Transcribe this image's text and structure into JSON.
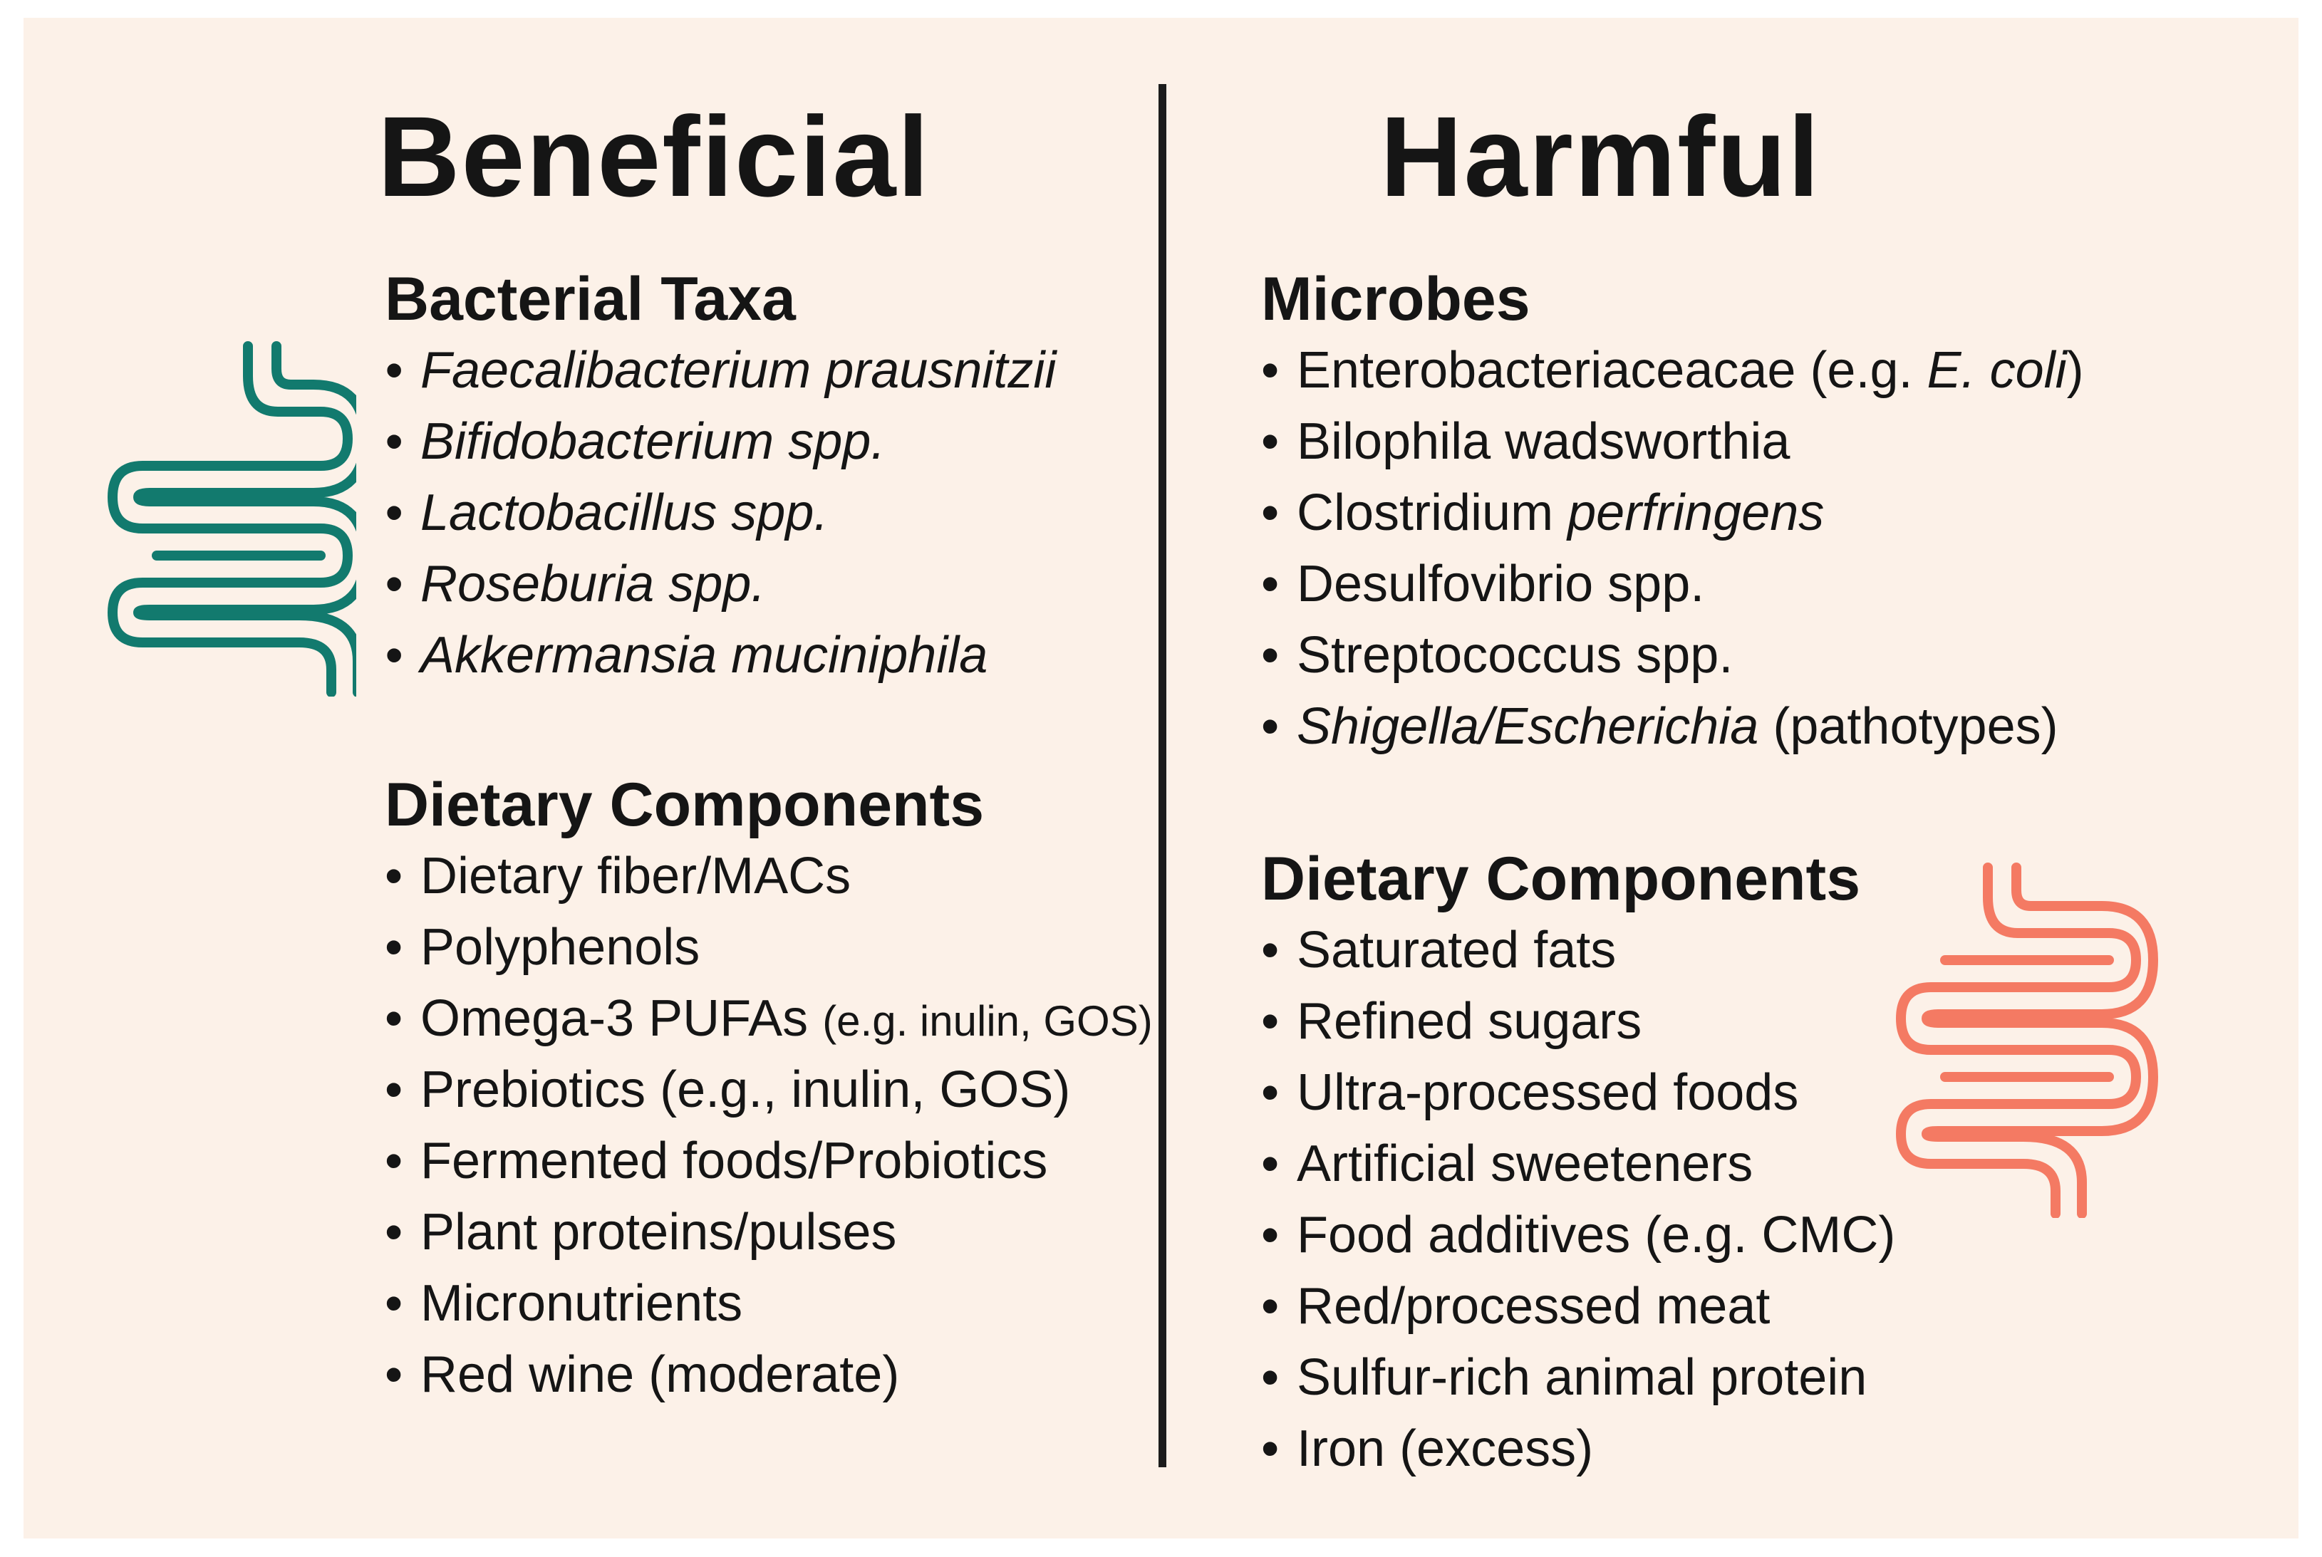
{
  "colors": {
    "background": "#fcf1e8",
    "text": "#151515",
    "divider": "#1c1c1c",
    "beneficial_icon": "#127a6e",
    "harmful_icon": "#f47a63"
  },
  "icons": {
    "left": "intestine-icon",
    "right": "intestine-icon"
  },
  "beneficial": {
    "title": "Beneficial",
    "bacterial": {
      "heading": "Bacterial Taxa",
      "items": [
        "Faecalibacterium prausnitzii",
        "Bifidobacterium spp.",
        "Lactobacillus spp.",
        "Roseburia spp.",
        "Akkermansia muciniphila"
      ]
    },
    "dietary": {
      "heading": "Dietary Components",
      "items": [
        {
          "text": "Dietary fiber/MACs"
        },
        {
          "text": "Polyphenols"
        },
        {
          "text": "Omega-3 PUFAs",
          "note": "(e.g. inulin, GOS)"
        },
        {
          "text": "Prebiotics (e.g., inulin, GOS)"
        },
        {
          "text": "Fermented foods/Probiotics"
        },
        {
          "text": "Plant proteins/pulses"
        },
        {
          "text": "Micronutrients"
        },
        {
          "text": "Red wine (moderate)"
        }
      ]
    }
  },
  "harmful": {
    "title": "Harmful",
    "microbes": {
      "heading": "Microbes",
      "items": [
        {
          "plain": "Enterobacteriaceacae (e.g. ",
          "italic": "E. coli",
          "after": ")"
        },
        {
          "plain": "Bilophila wadsworthia"
        },
        {
          "plain": "Clostridium ",
          "italic": "perfringens"
        },
        {
          "plain": "Desulfovibrio spp."
        },
        {
          "plain": "Streptococcus spp."
        },
        {
          "italic": "Shigella/Escherichia",
          "after": " (pathotypes)"
        }
      ]
    },
    "dietary": {
      "heading": "Dietary Components",
      "items": [
        "Saturated fats",
        "Refined sugars",
        "Ultra-processed foods",
        "Artificial sweeteners",
        "Food additives (e.g. CMC)",
        "Red/processed meat",
        "Sulfur-rich animal protein",
        "Iron (excess)"
      ]
    }
  }
}
